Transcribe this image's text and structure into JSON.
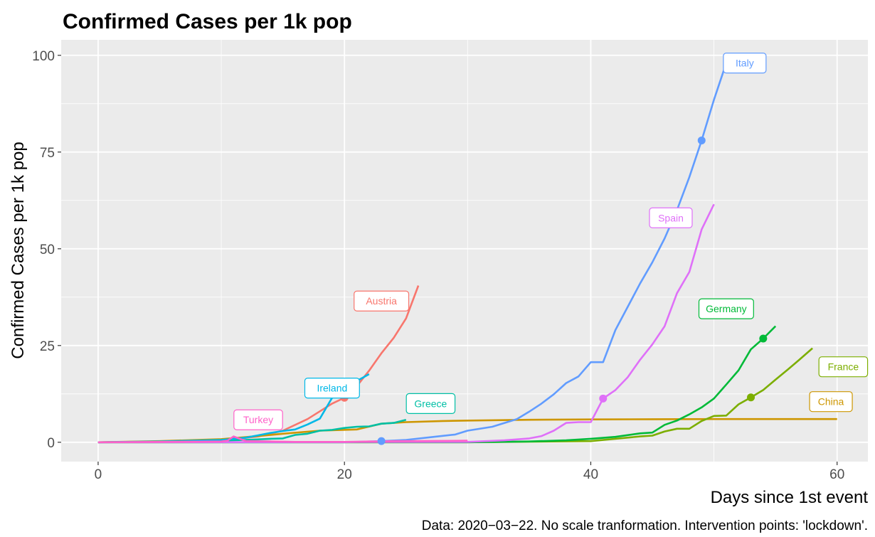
{
  "chart_data": {
    "type": "line",
    "title": "Confirmed Cases per 1k pop",
    "xlabel": "Days since 1st event",
    "ylabel": "Confirmed Cases per 1k pop",
    "caption": "Data: 2020−03−22. No scale tranformation. Intervention points: 'lockdown'.",
    "xlim": [
      -3,
      62.5
    ],
    "ylim": [
      -5,
      104
    ],
    "x_ticks": [
      0,
      20,
      40,
      60
    ],
    "x_tick_labels": [
      "0",
      "20",
      "40",
      "60"
    ],
    "y_ticks": [
      0,
      25,
      50,
      75,
      100
    ],
    "y_tick_labels": [
      "0",
      "25",
      "50",
      "75",
      "100"
    ],
    "grid": true,
    "legend": "none (direct labels)",
    "series": [
      {
        "name": "Austria",
        "color": "#F8766D",
        "x": [
          0,
          5,
          10,
          13,
          15,
          17,
          18,
          19,
          20,
          21,
          22,
          23,
          24,
          25,
          26
        ],
        "y": [
          0,
          0.1,
          0.4,
          1.5,
          3,
          6,
          8,
          10,
          11.5,
          14.5,
          18.5,
          23,
          27,
          32,
          40.5
        ],
        "intervention": {
          "x": 20,
          "y": 11.5
        },
        "label": {
          "text": "Austria",
          "x": 23,
          "y": 36.5
        }
      },
      {
        "name": "China",
        "color": "#CD9600",
        "x": [
          0,
          5,
          10,
          13,
          15,
          18,
          21,
          23,
          25,
          28,
          30,
          35,
          40,
          45,
          50,
          55,
          60
        ],
        "y": [
          0,
          0.3,
          0.8,
          1.6,
          2.2,
          3,
          3.3,
          4.8,
          5.2,
          5.5,
          5.6,
          5.8,
          5.9,
          5.95,
          6.0,
          6.0,
          6.0
        ],
        "label": {
          "text": "China",
          "x": 59.5,
          "y": 10.5
        }
      },
      {
        "name": "France",
        "color": "#7CAE00",
        "x": [
          0,
          30,
          40,
          44,
          45,
          46,
          47,
          48,
          49,
          50,
          51,
          52,
          53,
          54,
          55,
          56,
          57,
          58
        ],
        "y": [
          0,
          0,
          0.3,
          1.5,
          1.7,
          2.8,
          3.5,
          3.5,
          5.5,
          6.8,
          6.9,
          9.8,
          11.6,
          13.5,
          16.2,
          18.8,
          21.5,
          24.3
        ],
        "intervention": {
          "x": 53,
          "y": 11.6
        },
        "label": {
          "text": "France",
          "x": 60.5,
          "y": 19.5
        }
      },
      {
        "name": "Germany",
        "color": "#00BA38",
        "x": [
          0,
          30,
          35,
          38,
          40,
          42,
          44,
          45,
          46,
          47,
          48,
          49,
          50,
          51,
          52,
          53,
          54,
          55
        ],
        "y": [
          0,
          0,
          0.2,
          0.5,
          0.9,
          1.4,
          2.3,
          2.5,
          4.5,
          5.6,
          7.2,
          9,
          11.3,
          14.9,
          18.6,
          24,
          26.8,
          30
        ],
        "intervention": {
          "x": 54,
          "y": 26.8
        },
        "label": {
          "text": "Germany",
          "x": 51,
          "y": 34.5
        }
      },
      {
        "name": "Greece",
        "color": "#00BFA5",
        "x": [
          0,
          5,
          10,
          12,
          14,
          15,
          16,
          17,
          18,
          19,
          20,
          21,
          22,
          23,
          24,
          25
        ],
        "y": [
          0,
          0.1,
          0.4,
          0.6,
          0.9,
          1,
          1.9,
          2.2,
          3,
          3.2,
          3.7,
          4,
          4.1,
          4.8,
          5,
          5.8
        ],
        "label": {
          "text": "Greece",
          "x": 27,
          "y": 10
        }
      },
      {
        "name": "Ireland",
        "color": "#00B8E7",
        "x": [
          0,
          5,
          10,
          12,
          13,
          14,
          15,
          16,
          17,
          18,
          19,
          20,
          21,
          22
        ],
        "y": [
          0,
          0.2,
          0.6,
          1.2,
          1.8,
          2.4,
          2.9,
          3.3,
          4.6,
          6.1,
          11.5,
          13.3,
          15.8,
          17.6
        ],
        "label": {
          "text": "Ireland",
          "x": 19,
          "y": 14
        }
      },
      {
        "name": "Italy",
        "color": "#619CFF",
        "x": [
          0,
          20,
          23,
          25,
          27,
          29,
          30,
          32,
          34,
          35,
          36,
          37,
          38,
          39,
          40,
          41,
          42,
          43,
          44,
          45,
          46,
          47,
          48,
          49,
          50,
          51
        ],
        "y": [
          0,
          0,
          0.3,
          0.6,
          1.3,
          2,
          3,
          4,
          6,
          7.9,
          10,
          12.4,
          15.3,
          17,
          20.7,
          20.7,
          29,
          35,
          41,
          46.5,
          52.7,
          60,
          68.5,
          78,
          88.5,
          98
        ],
        "intervention": {
          "x": 49,
          "y": 78
        },
        "label": {
          "text": "Italy",
          "x": 52.5,
          "y": 98
        }
      },
      {
        "name": "Spain",
        "color": "#DF70F8",
        "x": [
          0,
          30,
          33,
          35,
          36,
          37,
          38,
          39,
          40,
          41,
          42,
          43,
          44,
          45,
          46,
          47,
          48,
          49,
          50
        ],
        "y": [
          0,
          0.1,
          0.5,
          1,
          1.6,
          3,
          5,
          5.2,
          5.2,
          11.3,
          13.5,
          16.8,
          21.3,
          25.3,
          30,
          38.5,
          44,
          55,
          61.5
        ],
        "intervention": {
          "x": 41,
          "y": 11.3
        },
        "label": {
          "text": "Spain",
          "x": 46.5,
          "y": 58
        }
      },
      {
        "name": "Turkey",
        "color": "#FF61C9",
        "x": [
          0,
          10,
          10.5,
          11,
          12,
          14,
          16,
          18,
          20,
          22,
          23,
          24,
          25,
          30
        ],
        "y": [
          0,
          0.2,
          0.4,
          1.5,
          0.3,
          0.2,
          0.1,
          0.1,
          0.1,
          0.2,
          0.2,
          0.3,
          0.3,
          0.4
        ],
        "label": {
          "text": "Turkey",
          "x": 13,
          "y": 5.8
        }
      },
      {
        "name": "Turkey-marker",
        "color": "#619CFF",
        "x": [
          23
        ],
        "y": [
          0.3
        ],
        "intervention": {
          "x": 23,
          "y": 0.3
        }
      }
    ]
  }
}
